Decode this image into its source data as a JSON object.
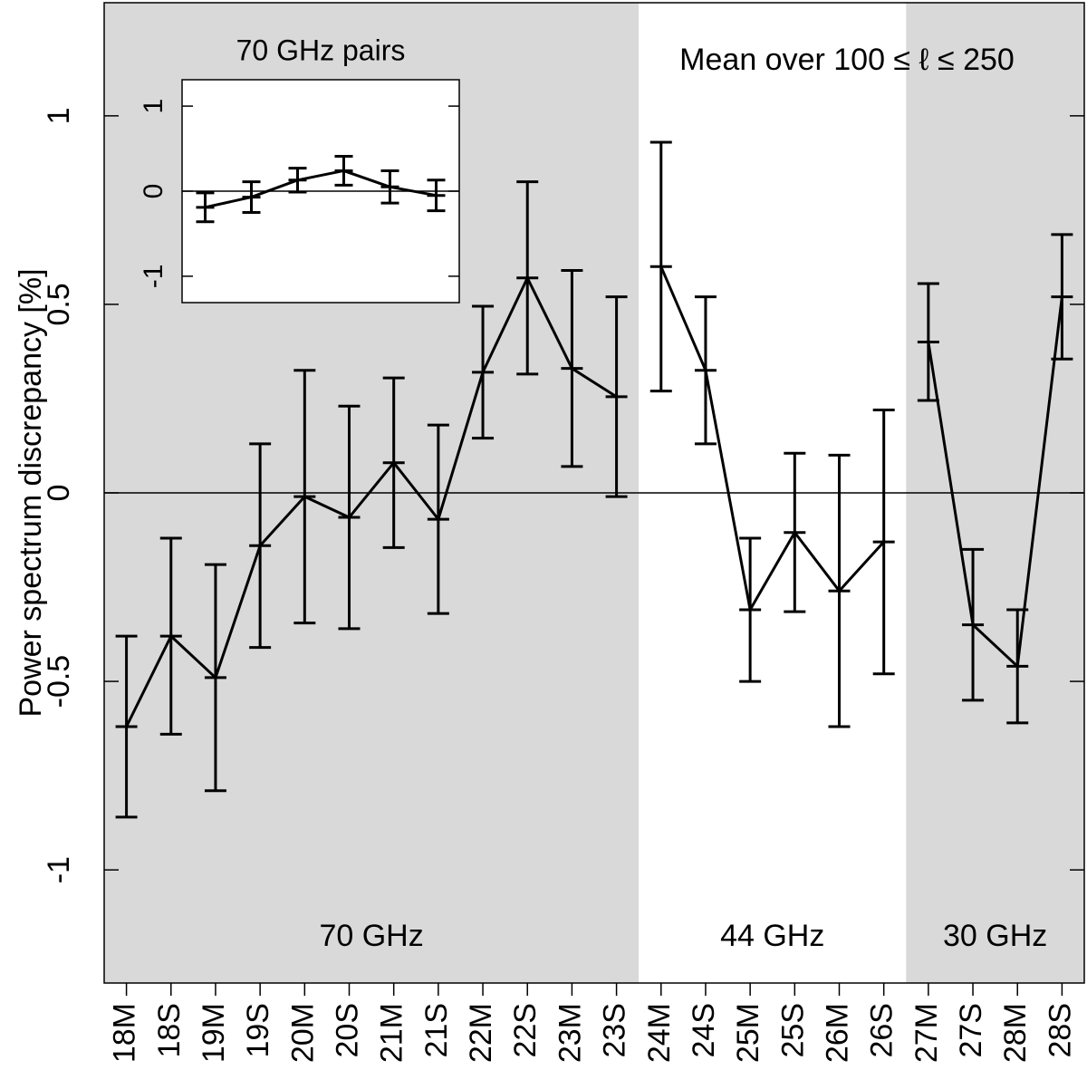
{
  "chart_data": [
    {
      "type": "line",
      "annotation": "Mean over 100 ≤ ℓ ≤ 250",
      "y_label": "Power spectrum discrepancy [%]",
      "categories": [
        "18M",
        "18S",
        "19M",
        "19S",
        "20M",
        "20S",
        "21M",
        "21S",
        "22M",
        "22S",
        "23M",
        "23S",
        "24M",
        "24S",
        "25M",
        "25S",
        "26M",
        "26S",
        "27M",
        "27S",
        "28M",
        "28S"
      ],
      "series": [
        {
          "color": "#000000",
          "values": [
            -0.62,
            -0.38,
            -0.49,
            -0.14,
            -0.01,
            -0.065,
            0.08,
            -0.07,
            0.32,
            0.57,
            0.33,
            0.255,
            0.6,
            0.325,
            -0.31,
            -0.105,
            -0.26,
            -0.13,
            0.4,
            -0.35,
            -0.46,
            0.52
          ],
          "errors": [
            0.24,
            0.26,
            0.3,
            0.27,
            0.335,
            0.295,
            0.225,
            0.25,
            0.175,
            0.255,
            0.26,
            0.265,
            0.33,
            0.195,
            0.19,
            0.21,
            0.36,
            0.35,
            0.155,
            0.2,
            0.15,
            0.165
          ]
        }
      ],
      "regions": [
        {
          "label": "70 GHz",
          "from": "18M",
          "to": "23S",
          "shade": "#d9d9d9"
        },
        {
          "label": "44 GHz",
          "from": "24M",
          "to": "26S",
          "shade": "#ffffff"
        },
        {
          "label": "30 GHz",
          "from": "27M",
          "to": "28S",
          "shade": "#d9d9d9"
        }
      ],
      "hline": 0,
      "ylim": [
        -1.3,
        1.3
      ],
      "yticks": [
        -1,
        -0.5,
        0,
        0.5,
        1
      ]
    },
    {
      "type": "line",
      "title": "70 GHz pairs",
      "series": [
        {
          "color": "#000000",
          "values": [
            -0.19,
            -0.07,
            0.13,
            0.24,
            0.05,
            -0.05
          ],
          "errors": [
            0.17,
            0.18,
            0.14,
            0.17,
            0.19,
            0.18
          ]
        }
      ],
      "hline": 0,
      "ylim": [
        -1.31,
        1.31
      ],
      "yticks": [
        -1,
        0,
        1
      ]
    }
  ]
}
